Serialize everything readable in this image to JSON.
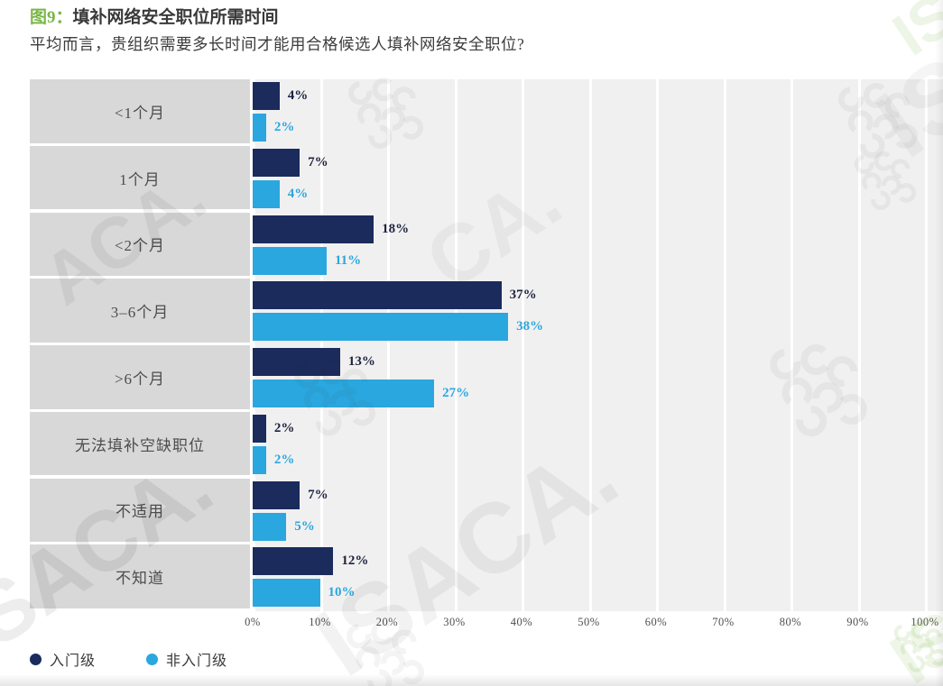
{
  "figure": {
    "label": "图9：",
    "title": "填补网络安全职位所需时间",
    "subtitle": "平均而言，贵组织需要多长时间才能用合格候选人填补网络安全职位?"
  },
  "chart_data": {
    "type": "bar",
    "orientation": "horizontal",
    "title": "填补网络安全职位所需时间",
    "categories": [
      "<1个月",
      "1个月",
      "<2个月",
      "3–6个月",
      ">6个月",
      "无法填补空缺职位",
      "不适用",
      "不知道"
    ],
    "series": [
      {
        "name": "入门级",
        "color": "#1a2b5c",
        "label_color": "#1c2340",
        "values": [
          4,
          7,
          18,
          37,
          13,
          2,
          7,
          12
        ]
      },
      {
        "name": "非入门级",
        "color": "#2aa7de",
        "label_color": "#2aa7de",
        "values": [
          2,
          4,
          11,
          38,
          27,
          2,
          5,
          10
        ]
      }
    ],
    "value_suffix": "%",
    "x_ticks": [
      "0%",
      "10%",
      "20%",
      "30%",
      "40%",
      "50%",
      "60%",
      "70%",
      "80%",
      "90%",
      "100%"
    ],
    "xlim": [
      0,
      100
    ],
    "grid": true,
    "legend_position": "bottom-left"
  },
  "colors": {
    "figure_label_green": "#7ab648",
    "entry_level_navy": "#1a2b5c",
    "non_entry_blue": "#2aa7de",
    "category_box_gray": "#d8d8d8",
    "plot_background": "#f1f0f0",
    "gridline_white": "#ffffff"
  },
  "watermarks": {
    "brand_text": "ISACA.",
    "fragments": [
      "ISACA.",
      "ISACA.",
      "ACA.",
      "CA.",
      "IS",
      "IS"
    ]
  }
}
